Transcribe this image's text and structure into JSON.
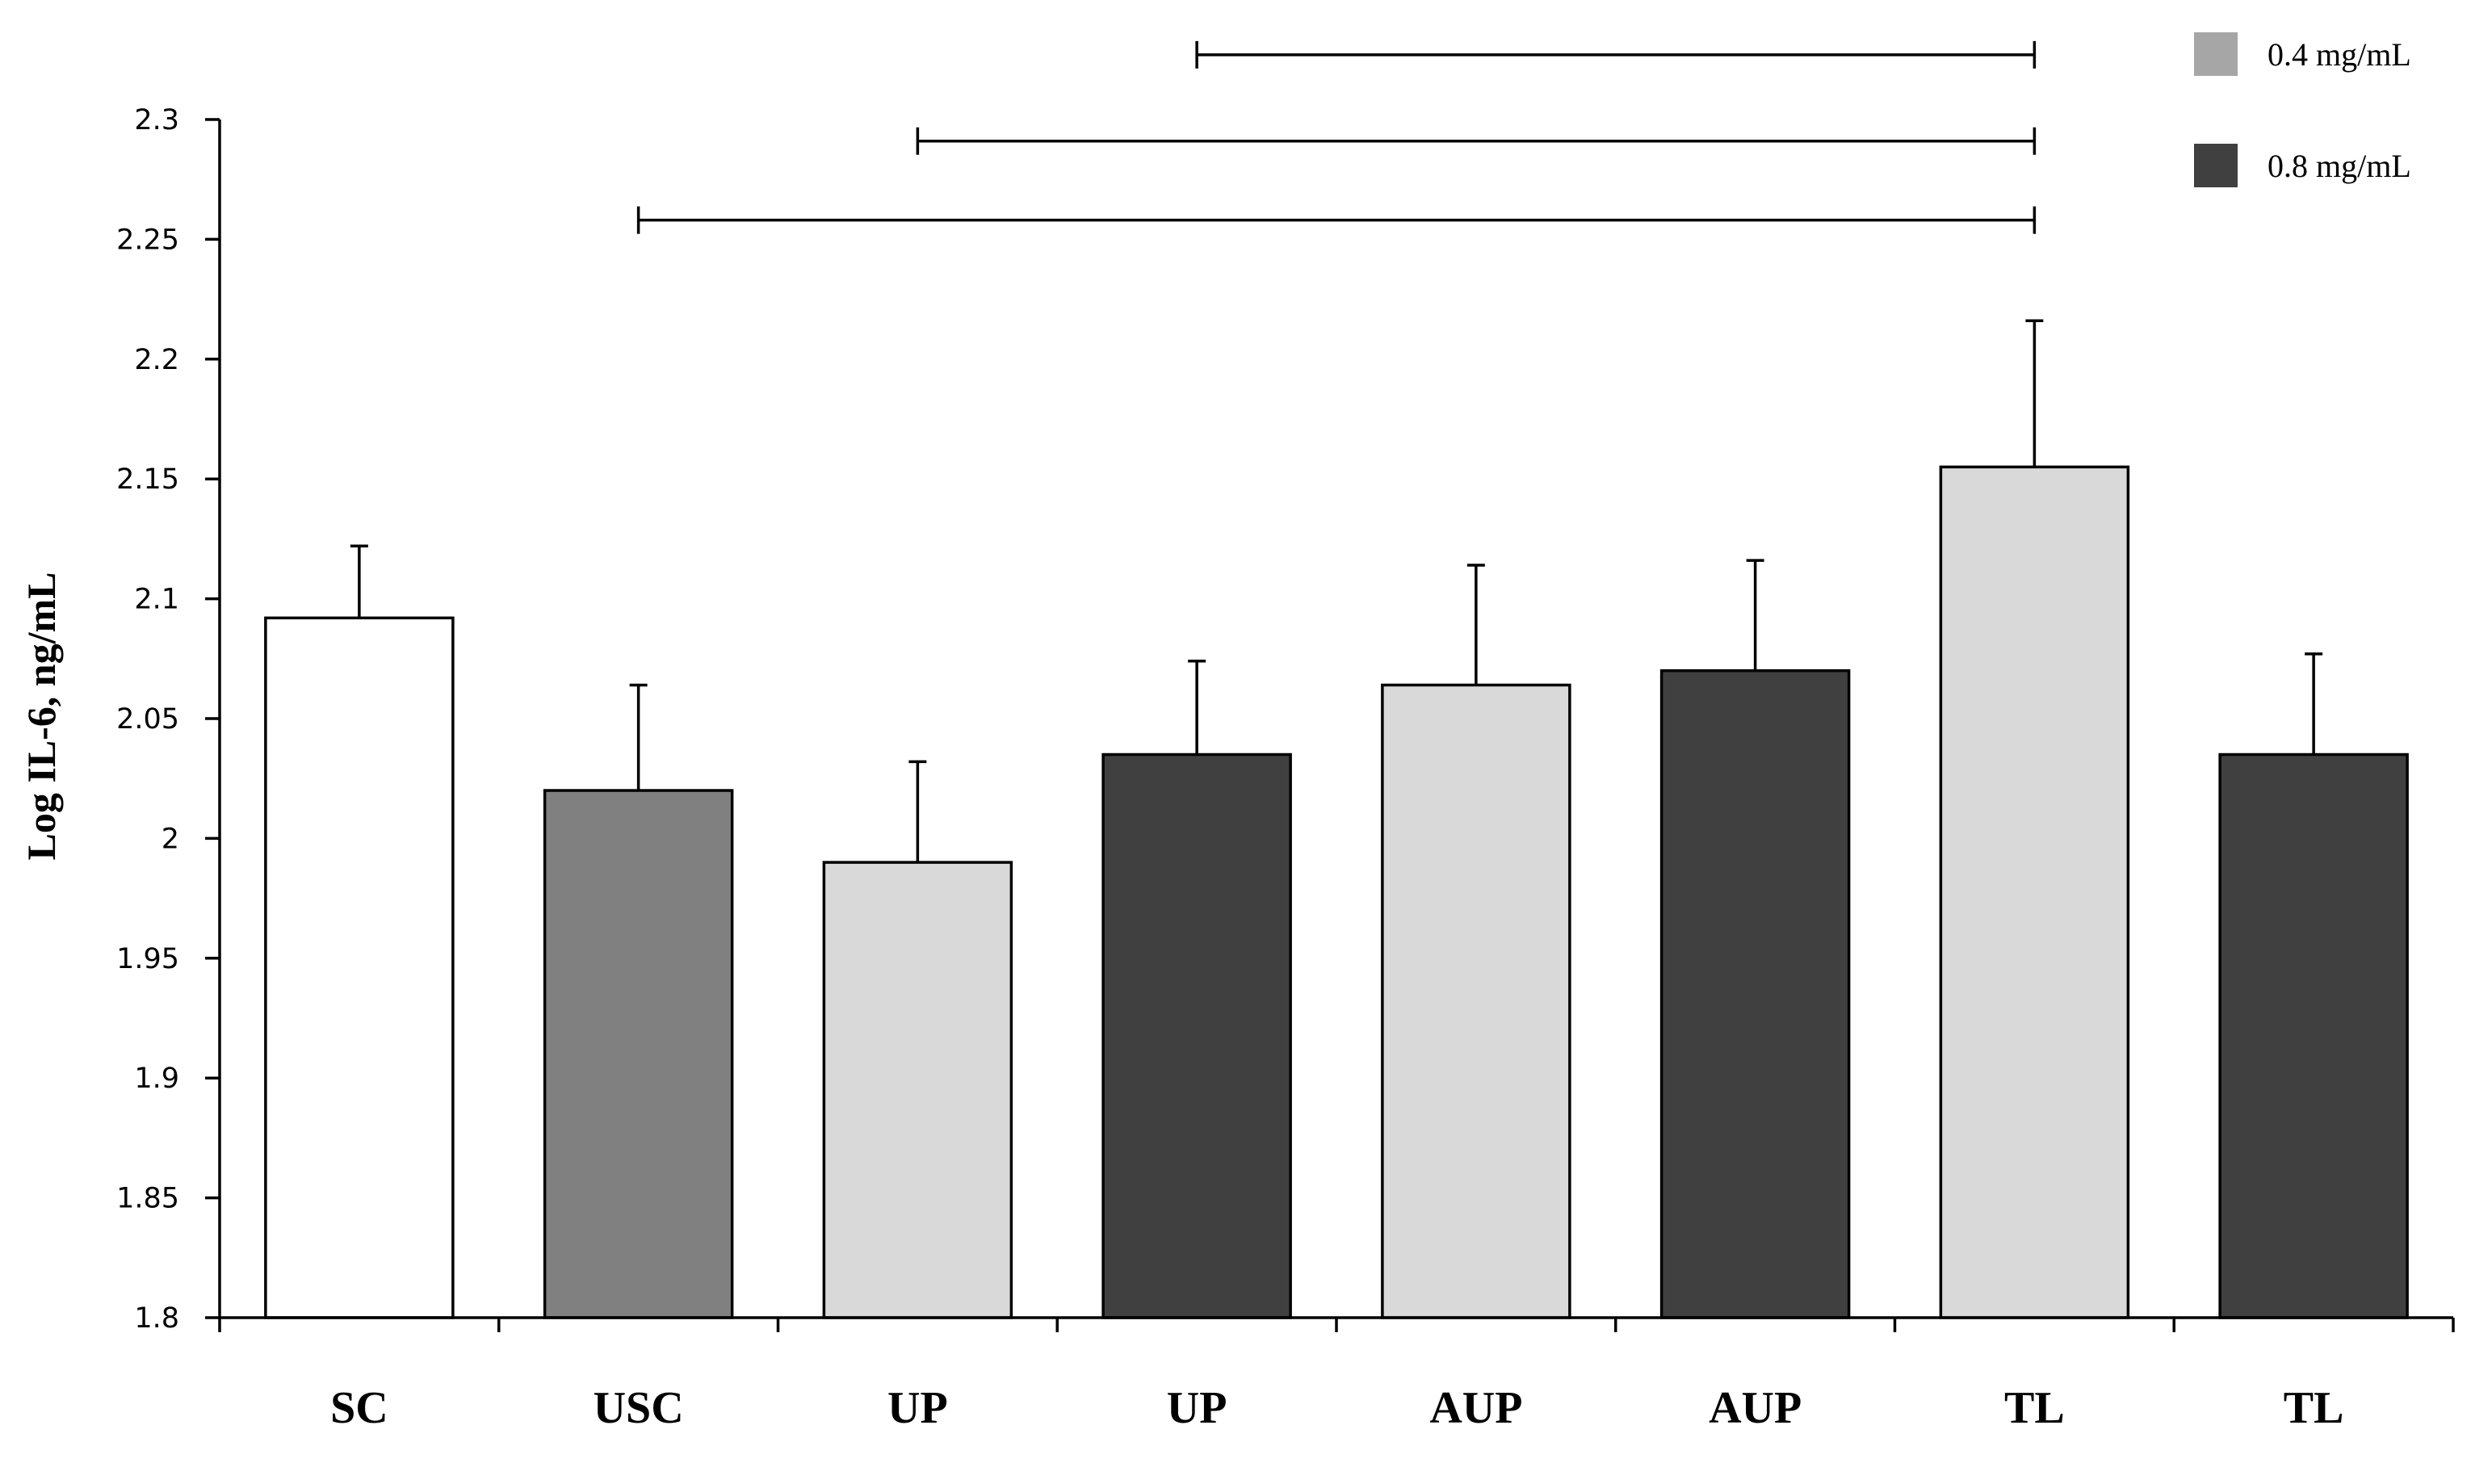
{
  "chart_data": {
    "type": "bar",
    "title": "",
    "xlabel": "",
    "ylabel": "Log IL-6, ng/mL",
    "ylim": [
      1.8,
      2.3
    ],
    "yticks": [
      "1.8",
      "1.85",
      "1.9",
      "1.95",
      "2",
      "2.05",
      "2.1",
      "2.15",
      "2.2",
      "2.25",
      "2.3"
    ],
    "grid": false,
    "categories": [
      "SC",
      "USC",
      "UP",
      "UP",
      "AUP",
      "AUP",
      "TL",
      "TL"
    ],
    "values": [
      2.092,
      2.02,
      1.99,
      2.035,
      2.064,
      2.07,
      2.155,
      2.035
    ],
    "errors": [
      0.03,
      0.044,
      0.042,
      0.039,
      0.05,
      0.046,
      0.061,
      0.042
    ],
    "fills": [
      "#ffffff",
      "#808080",
      "#d9d9d9",
      "#404040",
      "#d9d9d9",
      "#404040",
      "#d9d9d9",
      "#404040"
    ],
    "legend": {
      "position": "top-right",
      "items": [
        {
          "label": "0.4 mg/mL",
          "color": "#a6a6a6"
        },
        {
          "label": "0.8 mg/mL",
          "color": "#404040"
        }
      ]
    },
    "significance_brackets": [
      {
        "from": 1,
        "to": 6,
        "y": 2.258
      },
      {
        "from": 2,
        "to": 6,
        "y": 2.291
      },
      {
        "from": 3,
        "to": 6,
        "y": 2.327
      }
    ]
  }
}
